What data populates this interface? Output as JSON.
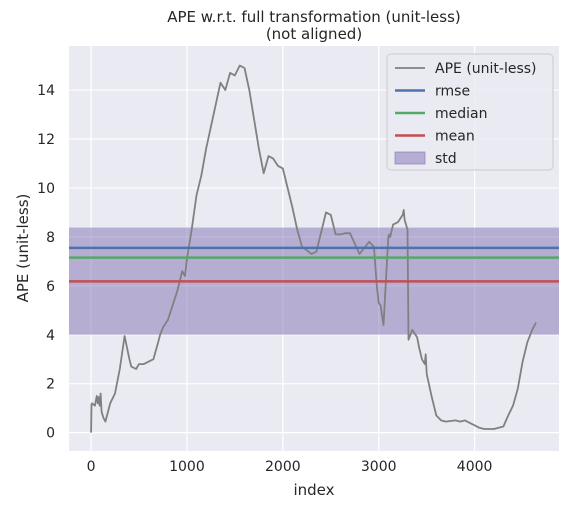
{
  "chart_data": {
    "type": "line",
    "title_line1": "APE w.r.t. full transformation (unit-less)",
    "title_line2": "(not aligned)",
    "xlabel": "index",
    "ylabel": "APE (unit-less)",
    "xlim": [
      -230,
      4880
    ],
    "ylim": [
      -0.75,
      15.8
    ],
    "xticks": [
      0,
      1000,
      2000,
      3000,
      4000
    ],
    "yticks": [
      0,
      2,
      4,
      6,
      8,
      10,
      12,
      14
    ],
    "grid": true,
    "legend_position": "top-right",
    "colors": {
      "background": "#eaeaf2",
      "grid": "#ffffff",
      "ape": "#808080",
      "rmse": "#4c72b0",
      "median": "#55a868",
      "mean": "#c44e52",
      "std": "#8172b2"
    },
    "stats": {
      "rmse": 7.55,
      "median": 7.15,
      "mean": 6.18,
      "std_low": 4.0,
      "std_high": 8.38
    },
    "legend": [
      {
        "key": "ape",
        "label": "APE (unit-less)",
        "kind": "line"
      },
      {
        "key": "rmse",
        "label": "rmse",
        "kind": "line"
      },
      {
        "key": "median",
        "label": "median",
        "kind": "line"
      },
      {
        "key": "mean",
        "label": "mean",
        "kind": "line"
      },
      {
        "key": "std",
        "label": "std",
        "kind": "patch"
      }
    ],
    "series": [
      {
        "name": "APE (unit-less)",
        "x": [
          0,
          5,
          10,
          40,
          60,
          70,
          80,
          90,
          100,
          110,
          130,
          150,
          180,
          200,
          250,
          300,
          350,
          400,
          420,
          470,
          500,
          550,
          650,
          700,
          720,
          750,
          800,
          900,
          950,
          980,
          1000,
          1050,
          1100,
          1150,
          1200,
          1300,
          1350,
          1400,
          1450,
          1500,
          1550,
          1600,
          1650,
          1700,
          1750,
          1800,
          1850,
          1900,
          1950,
          2000,
          2050,
          2100,
          2150,
          2200,
          2300,
          2350,
          2400,
          2450,
          2500,
          2550,
          2600,
          2650,
          2700,
          2800,
          2900,
          2950,
          2980,
          3000,
          3020,
          3030,
          3050,
          3100,
          3110,
          3120,
          3150,
          3200,
          3250,
          3260,
          3270,
          3300,
          3310,
          3350,
          3400,
          3420,
          3450,
          3480,
          3490,
          3500,
          3550,
          3600,
          3650,
          3700,
          3800,
          3850,
          3900,
          3950,
          4000,
          4050,
          4100,
          4150,
          4200,
          4250,
          4300,
          4350,
          4400,
          4450,
          4500,
          4550,
          4600,
          4640
        ],
        "values": [
          0.0,
          1.15,
          1.2,
          1.1,
          1.5,
          1.2,
          1.45,
          1.1,
          1.6,
          0.85,
          0.6,
          0.45,
          0.9,
          1.2,
          1.6,
          2.6,
          3.95,
          3.0,
          2.7,
          2.6,
          2.8,
          2.8,
          3.0,
          3.7,
          4.0,
          4.3,
          4.6,
          5.8,
          6.6,
          6.4,
          7.1,
          8.3,
          9.7,
          10.5,
          11.6,
          13.4,
          14.3,
          14.0,
          14.7,
          14.6,
          15.0,
          14.9,
          14.0,
          12.8,
          11.6,
          10.6,
          11.3,
          11.2,
          10.9,
          10.8,
          10.0,
          9.2,
          8.3,
          7.6,
          7.3,
          7.4,
          8.2,
          9.0,
          8.9,
          8.1,
          8.1,
          8.15,
          8.15,
          7.3,
          7.8,
          7.6,
          6.0,
          5.3,
          5.2,
          4.9,
          4.4,
          8.0,
          8.1,
          8.0,
          8.5,
          8.6,
          8.9,
          9.1,
          8.7,
          8.3,
          3.8,
          4.2,
          3.9,
          3.5,
          3.0,
          2.8,
          3.2,
          2.4,
          1.5,
          0.7,
          0.5,
          0.45,
          0.5,
          0.45,
          0.5,
          0.4,
          0.3,
          0.2,
          0.15,
          0.15,
          0.15,
          0.2,
          0.25,
          0.7,
          1.1,
          1.8,
          2.9,
          3.7,
          4.2,
          4.5
        ]
      }
    ]
  }
}
